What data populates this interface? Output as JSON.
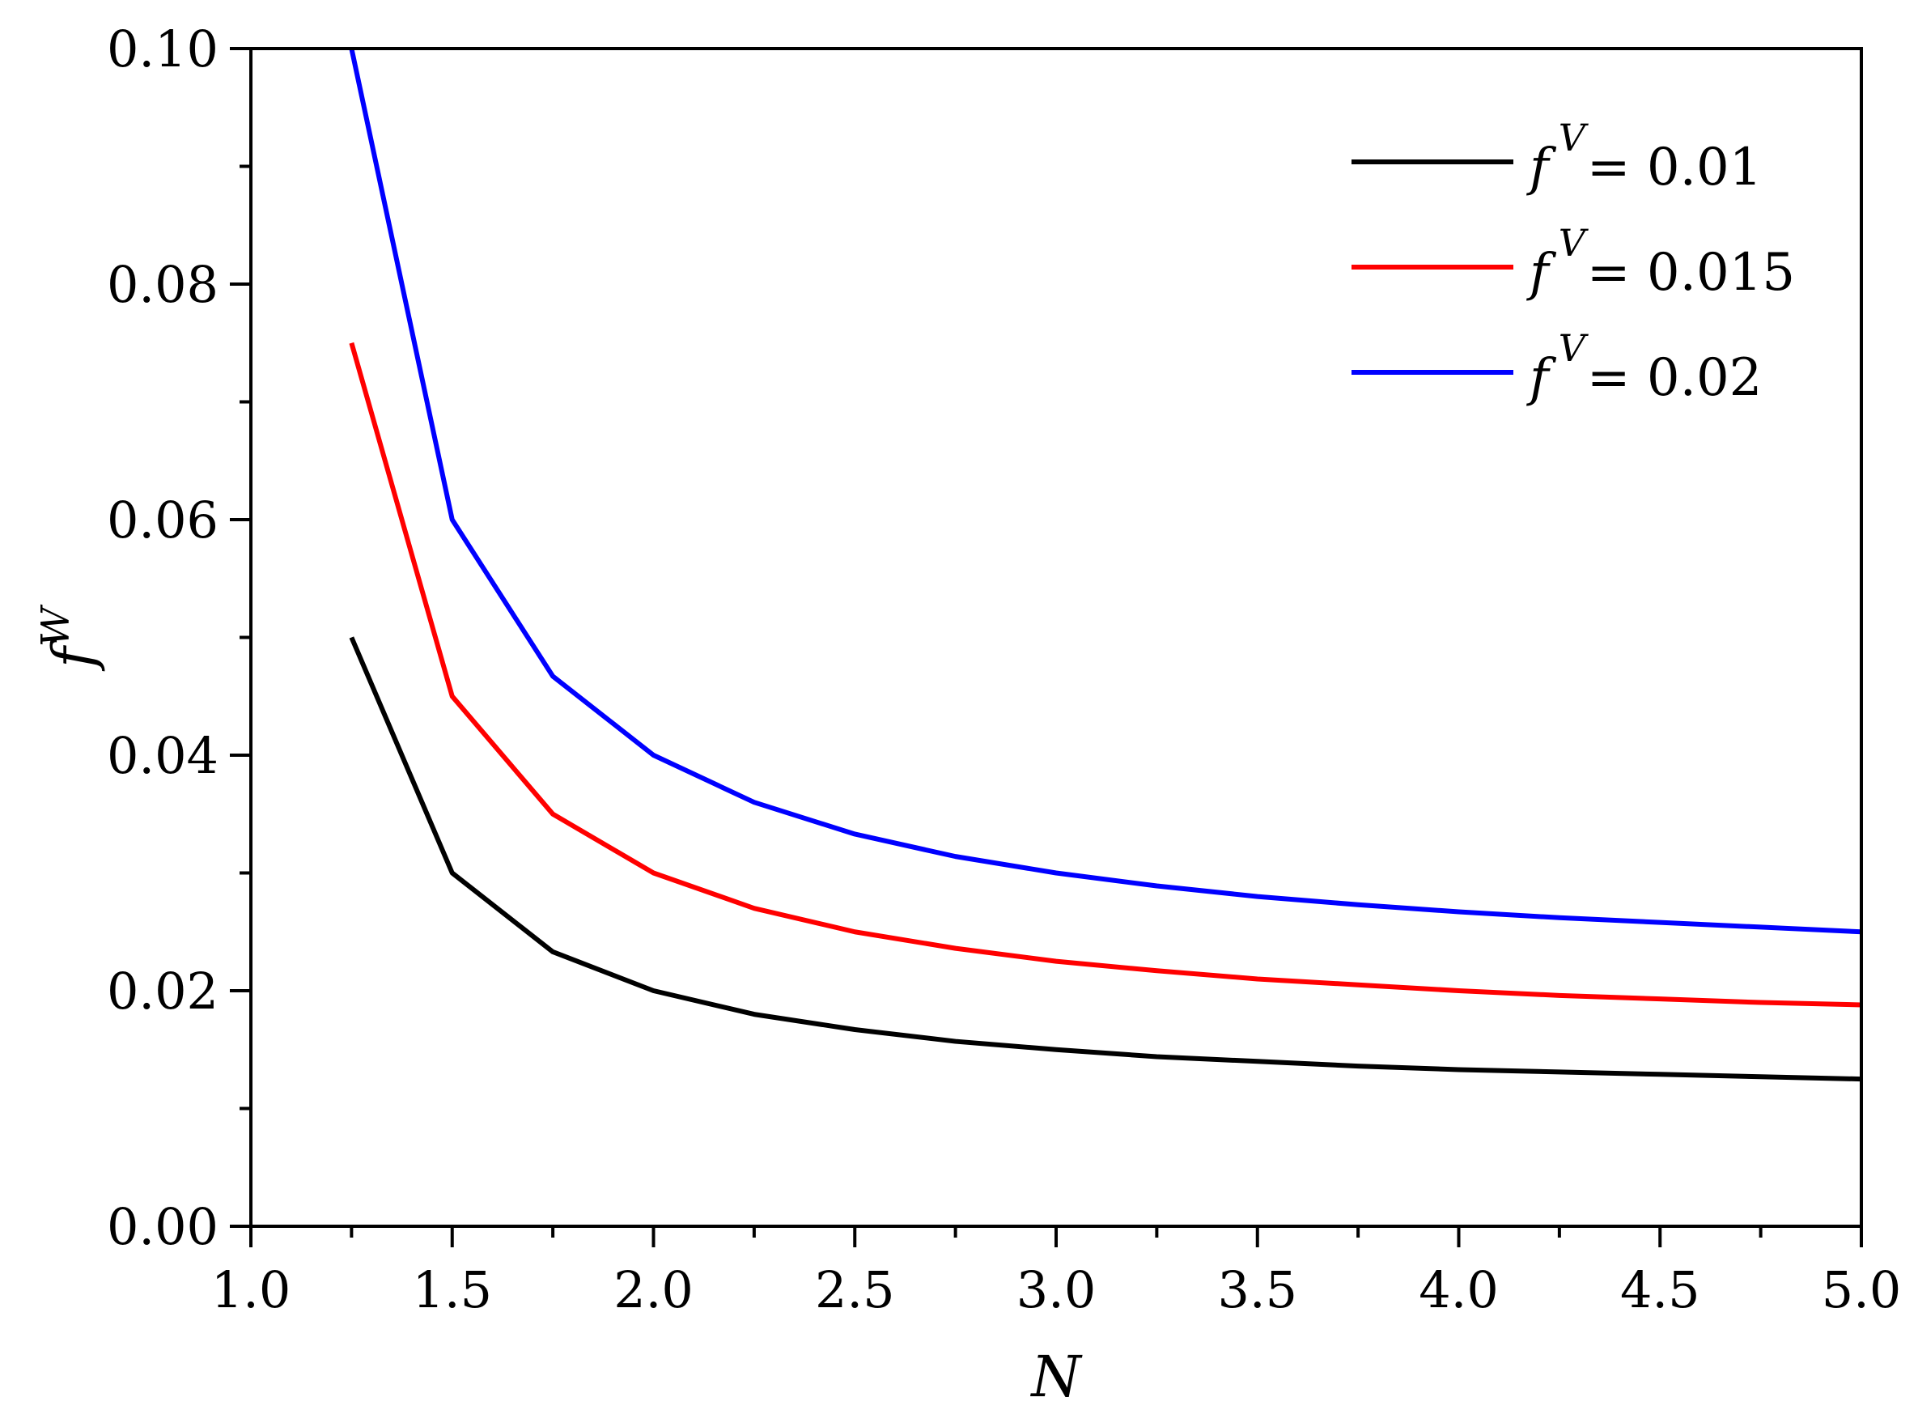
{
  "chart_data": {
    "type": "line",
    "xlabel": "N",
    "ylabel": {
      "base": "f",
      "sup": "W"
    },
    "xlim": [
      1.0,
      5.0
    ],
    "ylim": [
      0.0,
      0.1
    ],
    "x_ticks": [
      "1.0",
      "1.5",
      "2.0",
      "2.5",
      "3.0",
      "3.5",
      "4.0",
      "4.5",
      "5.0"
    ],
    "y_ticks": [
      "0.00",
      "0.02",
      "0.04",
      "0.06",
      "0.08",
      "0.10"
    ],
    "grid": false,
    "legend_position": "top-right",
    "x": [
      1.25,
      1.5,
      1.75,
      2.0,
      2.25,
      2.5,
      2.75,
      3.0,
      3.25,
      3.5,
      3.75,
      4.0,
      4.25,
      4.5,
      4.75,
      5.0
    ],
    "series": [
      {
        "name": "f^V= 0.01",
        "legend": {
          "sym": "f",
          "sup": "V",
          "rest": "= 0.01"
        },
        "color": "#000000",
        "values": [
          0.05,
          0.03,
          0.0233,
          0.02,
          0.018,
          0.0167,
          0.0157,
          0.015,
          0.0144,
          0.014,
          0.0136,
          0.0133,
          0.0131,
          0.0129,
          0.0127,
          0.0125
        ]
      },
      {
        "name": "f^V= 0.015",
        "legend": {
          "sym": "f",
          "sup": "V",
          "rest": "= 0.015"
        },
        "color": "#ff0000",
        "values": [
          0.075,
          0.045,
          0.035,
          0.03,
          0.027,
          0.025,
          0.0236,
          0.0225,
          0.0217,
          0.021,
          0.0205,
          0.02,
          0.0196,
          0.0193,
          0.019,
          0.0188
        ]
      },
      {
        "name": "f^V= 0.02",
        "legend": {
          "sym": "f",
          "sup": "V",
          "rest": "= 0.02"
        },
        "color": "#0000ff",
        "values": [
          0.1,
          0.06,
          0.0467,
          0.04,
          0.036,
          0.0333,
          0.0314,
          0.03,
          0.0289,
          0.028,
          0.0273,
          0.0267,
          0.0262,
          0.0258,
          0.0254,
          0.025
        ]
      }
    ]
  }
}
